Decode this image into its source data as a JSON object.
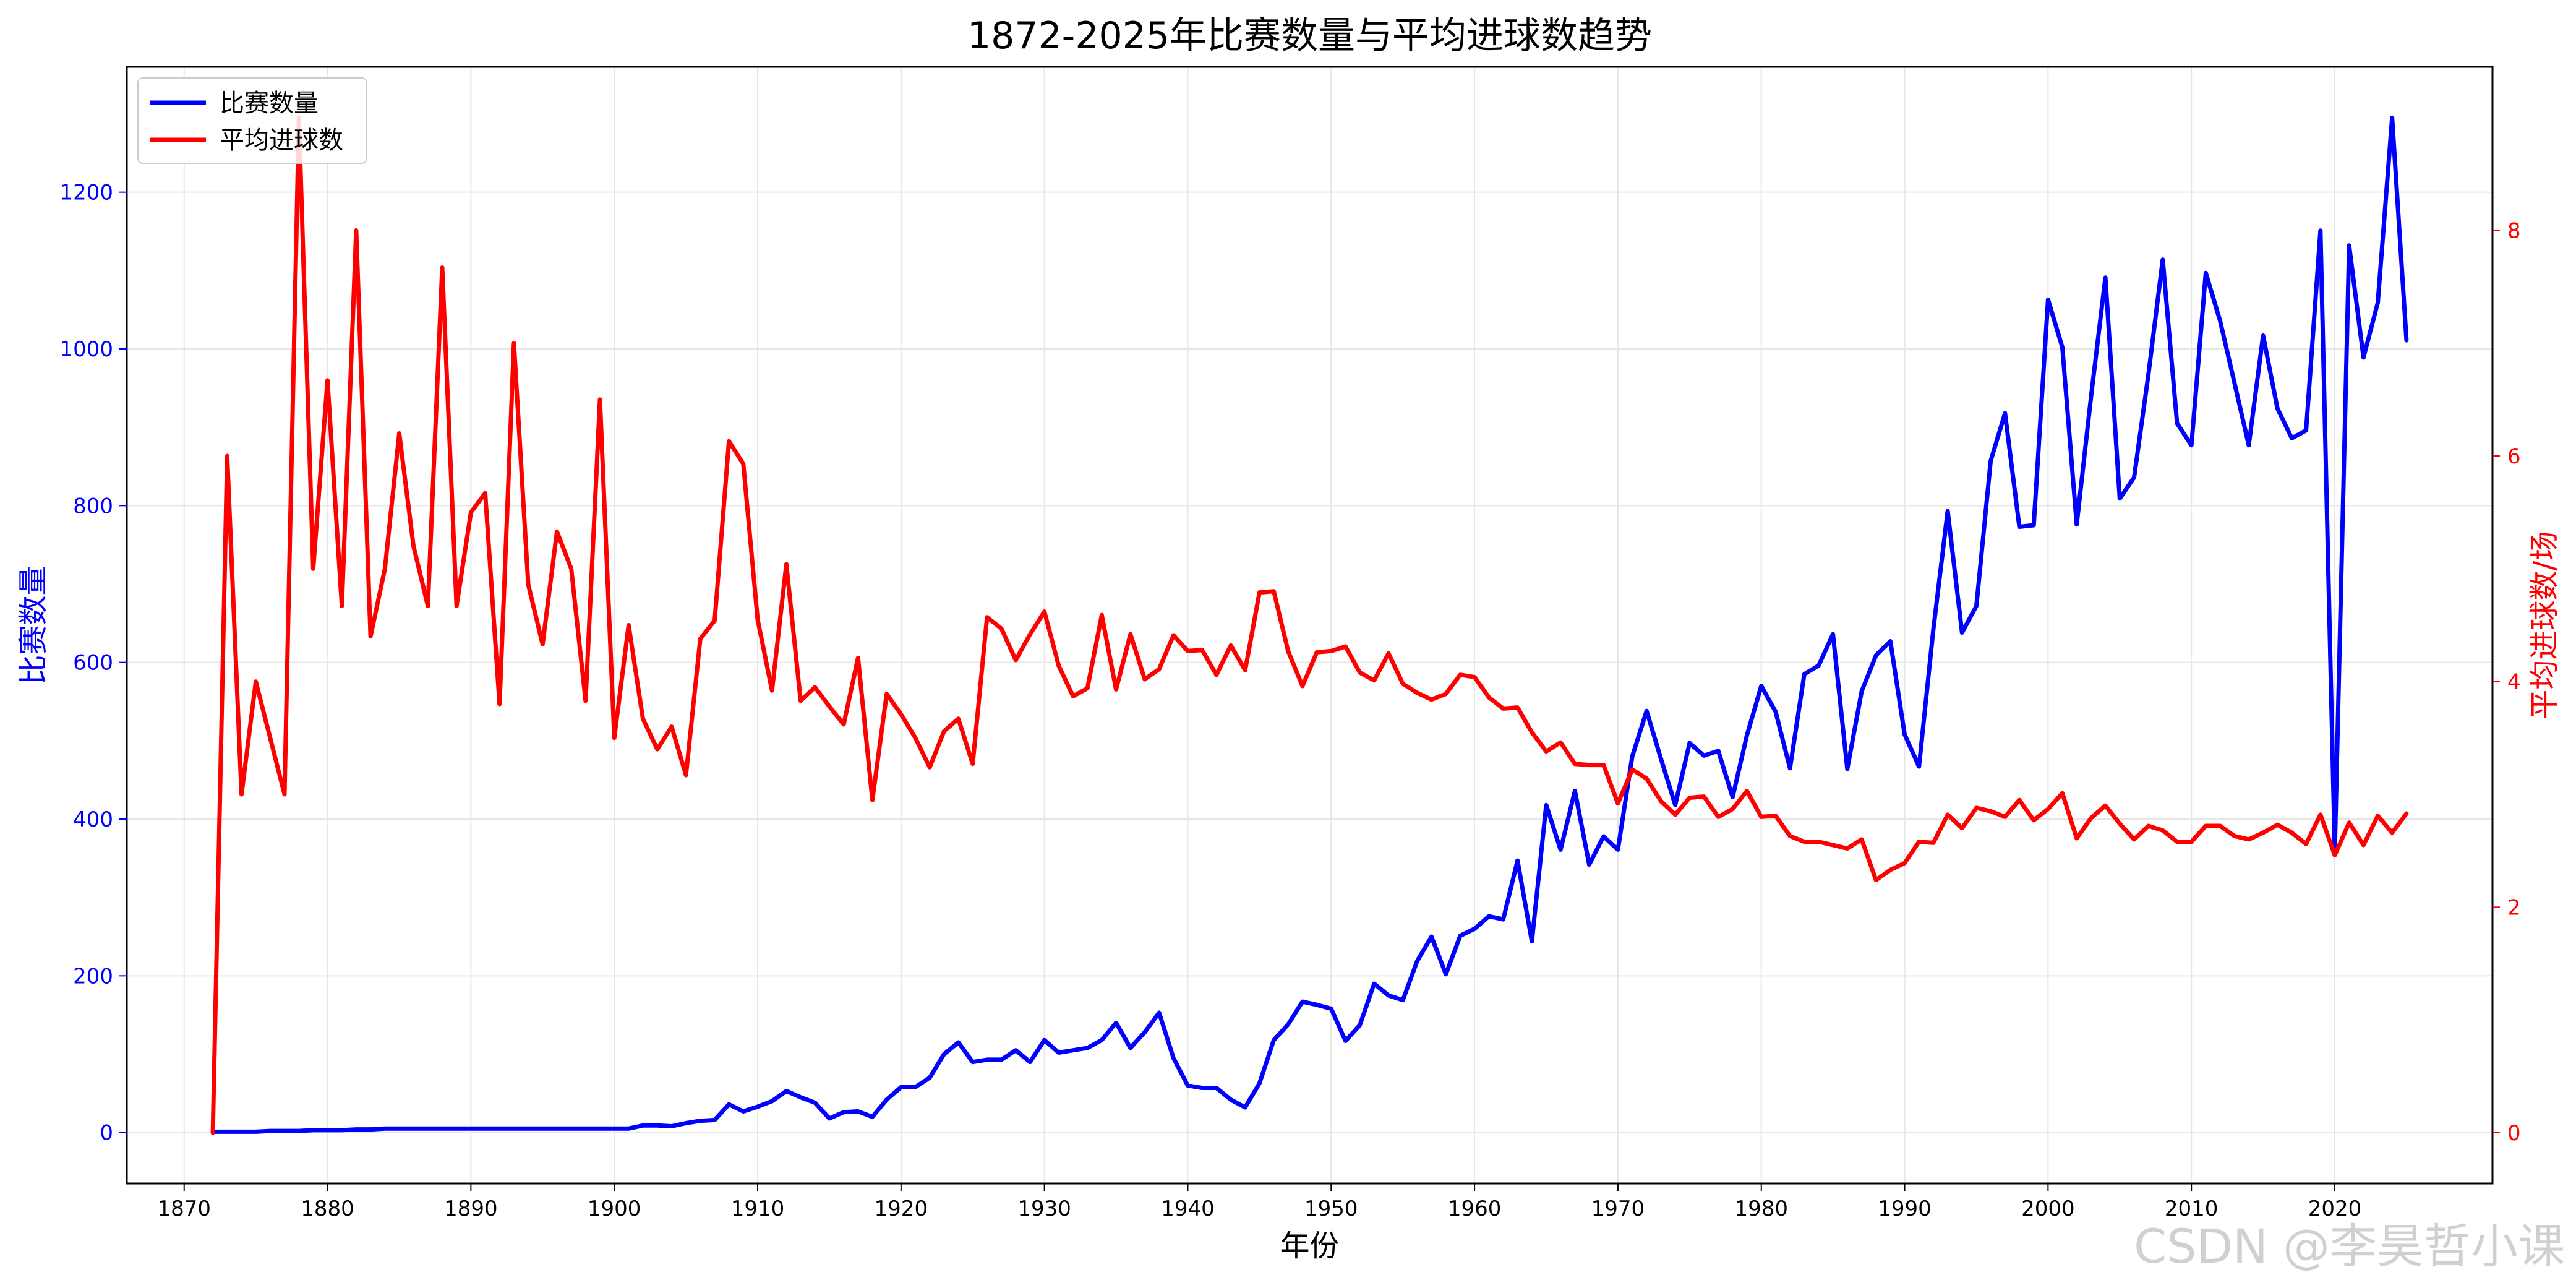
{
  "watermark": "CSDN @李昊哲小课",
  "colors": {
    "matches": "#0000ff",
    "goals": "#ff0000",
    "grid": "#e6e6e6",
    "axis": "#000000"
  },
  "chart_data": {
    "type": "line",
    "title": "1872-2025年比赛数量与平均进球数趋势",
    "xlabel": "年份",
    "ylabel_left": "比赛数量",
    "ylabel_right": "平均进球数/场",
    "xlim": [
      1866,
      2031
    ],
    "ylim_left": [
      -65,
      1360
    ],
    "ylim_right": [
      -0.45,
      9.45
    ],
    "x_ticks": [
      1870,
      1880,
      1890,
      1900,
      1910,
      1920,
      1930,
      1940,
      1950,
      1960,
      1970,
      1980,
      1990,
      2000,
      2010,
      2020
    ],
    "y_ticks_left": [
      0,
      200,
      400,
      600,
      800,
      1000,
      1200
    ],
    "y_ticks_right": [
      0,
      2,
      4,
      6,
      8
    ],
    "grid": true,
    "legend_position": "upper-left",
    "series": [
      {
        "name": "比赛数量",
        "axis": "left",
        "color": "#0000ff",
        "x": [
          1872,
          1873,
          1874,
          1875,
          1876,
          1877,
          1878,
          1879,
          1880,
          1881,
          1882,
          1883,
          1884,
          1885,
          1886,
          1887,
          1888,
          1889,
          1890,
          1891,
          1892,
          1893,
          1894,
          1895,
          1896,
          1897,
          1898,
          1899,
          1900,
          1901,
          1902,
          1903,
          1904,
          1905,
          1906,
          1907,
          1908,
          1909,
          1910,
          1911,
          1912,
          1913,
          1914,
          1915,
          1916,
          1917,
          1918,
          1919,
          1920,
          1921,
          1922,
          1923,
          1924,
          1925,
          1926,
          1927,
          1928,
          1929,
          1930,
          1931,
          1932,
          1933,
          1934,
          1935,
          1936,
          1937,
          1938,
          1939,
          1940,
          1941,
          1942,
          1943,
          1944,
          1945,
          1946,
          1947,
          1948,
          1949,
          1950,
          1951,
          1952,
          1953,
          1954,
          1955,
          1956,
          1957,
          1958,
          1959,
          1960,
          1961,
          1962,
          1963,
          1964,
          1965,
          1966,
          1967,
          1968,
          1969,
          1970,
          1971,
          1972,
          1973,
          1974,
          1975,
          1976,
          1977,
          1978,
          1979,
          1980,
          1981,
          1982,
          1983,
          1984,
          1985,
          1986,
          1987,
          1988,
          1989,
          1990,
          1991,
          1992,
          1993,
          1994,
          1995,
          1996,
          1997,
          1998,
          1999,
          2000,
          2001,
          2002,
          2003,
          2004,
          2005,
          2006,
          2007,
          2008,
          2009,
          2010,
          2011,
          2012,
          2013,
          2014,
          2015,
          2016,
          2017,
          2018,
          2019,
          2020,
          2021,
          2022,
          2023,
          2024,
          2025
        ],
        "values": [
          1,
          1,
          1,
          1,
          2,
          2,
          2,
          3,
          3,
          3,
          4,
          4,
          5,
          5,
          5,
          5,
          5,
          5,
          5,
          5,
          5,
          5,
          5,
          5,
          5,
          5,
          5,
          5,
          5,
          5,
          9,
          9,
          8,
          12,
          15,
          16,
          36,
          27,
          33,
          40,
          53,
          45,
          38,
          18,
          26,
          27,
          20,
          42,
          58,
          58,
          70,
          100,
          115,
          90,
          93,
          93,
          105,
          90,
          118,
          102,
          105,
          108,
          118,
          140,
          108,
          128,
          153,
          95,
          60,
          57,
          57,
          42,
          32,
          63,
          118,
          138,
          167,
          163,
          158,
          117,
          137,
          190,
          175,
          169,
          219,
          250,
          202,
          251,
          260,
          276,
          272,
          347,
          244,
          418,
          361,
          436,
          342,
          378,
          361,
          480,
          538,
          477,
          418,
          497,
          481,
          487,
          428,
          507,
          570,
          537,
          465,
          585,
          596,
          636,
          464,
          563,
          609,
          627,
          508,
          467,
          642,
          793,
          638,
          672,
          857,
          918,
          773,
          775,
          1063,
          1002,
          776,
          939,
          1091,
          809,
          836,
          967,
          1114,
          905,
          877,
          1097,
          1036,
          957,
          877,
          1017,
          924,
          886,
          896,
          1151,
          359,
          1132,
          989,
          1059,
          1295,
          1011
        ]
      },
      {
        "name": "平均进球数",
        "axis": "right",
        "color": "#ff0000",
        "x": [
          1872,
          1873,
          1874,
          1875,
          1876,
          1877,
          1878,
          1879,
          1880,
          1881,
          1882,
          1883,
          1884,
          1885,
          1886,
          1887,
          1888,
          1889,
          1890,
          1891,
          1892,
          1893,
          1894,
          1895,
          1896,
          1897,
          1898,
          1899,
          1900,
          1901,
          1902,
          1903,
          1904,
          1905,
          1906,
          1907,
          1908,
          1909,
          1910,
          1911,
          1912,
          1913,
          1914,
          1915,
          1916,
          1917,
          1918,
          1919,
          1920,
          1921,
          1922,
          1923,
          1924,
          1925,
          1926,
          1927,
          1928,
          1929,
          1930,
          1931,
          1932,
          1933,
          1934,
          1935,
          1936,
          1937,
          1938,
          1939,
          1940,
          1941,
          1942,
          1943,
          1944,
          1945,
          1946,
          1947,
          1948,
          1949,
          1950,
          1951,
          1952,
          1953,
          1954,
          1955,
          1956,
          1957,
          1958,
          1959,
          1960,
          1961,
          1962,
          1963,
          1964,
          1965,
          1966,
          1967,
          1968,
          1969,
          1970,
          1971,
          1972,
          1973,
          1974,
          1975,
          1976,
          1977,
          1978,
          1979,
          1980,
          1981,
          1982,
          1983,
          1984,
          1985,
          1986,
          1987,
          1988,
          1989,
          1990,
          1991,
          1992,
          1993,
          1994,
          1995,
          1996,
          1997,
          1998,
          1999,
          2000,
          2001,
          2002,
          2003,
          2004,
          2005,
          2006,
          2007,
          2008,
          2009,
          2010,
          2011,
          2012,
          2013,
          2014,
          2015,
          2016,
          2017,
          2018,
          2019,
          2020,
          2021,
          2022,
          2023,
          2024,
          2025
        ],
        "values": [
          0,
          6.0,
          3.0,
          4.0,
          3.5,
          3.0,
          9.0,
          5.0,
          6.67,
          4.67,
          8.0,
          4.4,
          5.0,
          6.2,
          5.2,
          4.67,
          7.67,
          4.67,
          5.5,
          5.67,
          3.8,
          7.0,
          4.86,
          4.33,
          5.33,
          5.0,
          3.83,
          6.5,
          3.5,
          4.5,
          3.67,
          3.4,
          3.6,
          3.17,
          4.38,
          4.54,
          6.13,
          5.93,
          4.55,
          3.92,
          5.04,
          3.83,
          3.95,
          3.78,
          3.62,
          4.21,
          2.95,
          3.89,
          3.71,
          3.5,
          3.24,
          3.56,
          3.67,
          3.27,
          4.57,
          4.47,
          4.19,
          4.42,
          4.62,
          4.14,
          3.87,
          3.94,
          4.59,
          3.93,
          4.42,
          4.02,
          4.11,
          4.41,
          4.27,
          4.28,
          4.06,
          4.32,
          4.1,
          4.79,
          4.8,
          4.27,
          3.96,
          4.26,
          4.27,
          4.31,
          4.08,
          4.01,
          4.25,
          3.98,
          3.9,
          3.84,
          3.89,
          4.06,
          4.04,
          3.86,
          3.76,
          3.77,
          3.55,
          3.38,
          3.46,
          3.27,
          3.26,
          3.26,
          2.92,
          3.22,
          3.14,
          2.94,
          2.82,
          2.97,
          2.98,
          2.8,
          2.87,
          3.03,
          2.8,
          2.81,
          2.63,
          2.58,
          2.58,
          2.55,
          2.52,
          2.6,
          2.24,
          2.33,
          2.39,
          2.58,
          2.57,
          2.82,
          2.7,
          2.88,
          2.85,
          2.8,
          2.95,
          2.77,
          2.87,
          3.01,
          2.61,
          2.79,
          2.9,
          2.74,
          2.6,
          2.72,
          2.68,
          2.58,
          2.58,
          2.72,
          2.72,
          2.63,
          2.6,
          2.66,
          2.73,
          2.66,
          2.56,
          2.82,
          2.46,
          2.75,
          2.55,
          2.81,
          2.66,
          2.83
        ]
      }
    ]
  }
}
